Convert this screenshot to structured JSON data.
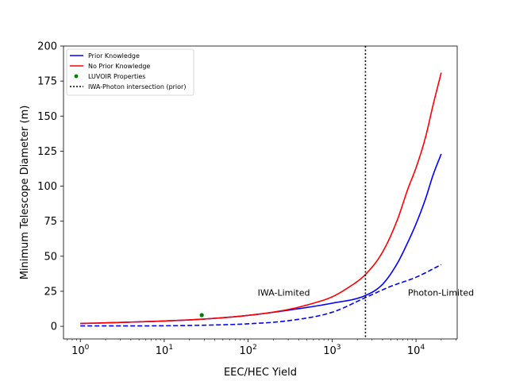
{
  "chart_data": {
    "type": "line",
    "xlabel": "EEC/HEC Yield",
    "ylabel": "Minimum Telescope Diameter (m)",
    "xscale": "log",
    "xlim": [
      0.63,
      31000
    ],
    "ylim": [
      -9,
      200
    ],
    "grid": false,
    "legend_position": "top-left",
    "x_ticks": [
      {
        "value": 1,
        "base": "10",
        "exp": "0"
      },
      {
        "value": 10,
        "base": "10",
        "exp": "1"
      },
      {
        "value": 100,
        "base": "10",
        "exp": "2"
      },
      {
        "value": 1000,
        "base": "10",
        "exp": "3"
      },
      {
        "value": 10000,
        "base": "10",
        "exp": "4"
      }
    ],
    "y_ticks": [
      0,
      25,
      50,
      75,
      100,
      125,
      150,
      175,
      200
    ],
    "legend": [
      {
        "label": "Prior Knowledge",
        "color": "#0000ff",
        "marker": "line"
      },
      {
        "label": "No Prior Knowledge",
        "color": "#ff0000",
        "marker": "line"
      },
      {
        "label": "LUVOIR Properties",
        "color": "#008000",
        "marker": "dot"
      },
      {
        "label": "IWA-Photon intersection (prior)",
        "color": "#000000",
        "marker": "dotted-line"
      }
    ],
    "series": [
      {
        "name": "Prior Knowledge",
        "color": "#0000ff",
        "style": "solid",
        "points": [
          [
            1,
            2
          ],
          [
            3,
            2.8
          ],
          [
            10,
            3.8
          ],
          [
            30,
            5.2
          ],
          [
            100,
            7.8
          ],
          [
            300,
            11.5
          ],
          [
            1000,
            16.5
          ],
          [
            2500,
            22
          ],
          [
            4000,
            30
          ],
          [
            6000,
            45
          ],
          [
            8000,
            60
          ],
          [
            10000,
            73
          ],
          [
            13000,
            91
          ],
          [
            16000,
            108
          ],
          [
            20000,
            123
          ]
        ]
      },
      {
        "name": "No Prior Knowledge",
        "color": "#ff0000",
        "style": "solid",
        "points": [
          [
            1,
            2
          ],
          [
            3,
            2.8
          ],
          [
            10,
            3.8
          ],
          [
            30,
            5.2
          ],
          [
            100,
            7.8
          ],
          [
            300,
            12
          ],
          [
            600,
            16.5
          ],
          [
            1000,
            21
          ],
          [
            1500,
            27
          ],
          [
            2500,
            37
          ],
          [
            4000,
            53
          ],
          [
            6000,
            76
          ],
          [
            8000,
            98
          ],
          [
            10000,
            113
          ],
          [
            13000,
            135
          ],
          [
            16000,
            158
          ],
          [
            20000,
            181
          ]
        ]
      },
      {
        "name": "Prior Knowledge (photon-limited)",
        "color": "#0000ff",
        "style": "dashed",
        "points": [
          [
            1,
            0.3
          ],
          [
            10,
            0.4
          ],
          [
            30,
            0.8
          ],
          [
            100,
            1.8
          ],
          [
            300,
            4
          ],
          [
            1000,
            10
          ],
          [
            2500,
            20.5
          ],
          [
            5000,
            28.5
          ],
          [
            10000,
            35
          ],
          [
            20000,
            44
          ]
        ]
      },
      {
        "name": "LUVOIR Properties",
        "color": "#008000",
        "style": "marker",
        "points": [
          [
            28,
            8
          ]
        ]
      },
      {
        "name": "IWA-Photon intersection (prior)",
        "color": "#000000",
        "style": "vline-dotted",
        "x": 2500
      }
    ],
    "annotations": [
      {
        "text": "IWA-Limited",
        "x": 130,
        "y": 22
      },
      {
        "text": "Photon-Limited",
        "x": 8000,
        "y": 22
      }
    ]
  }
}
